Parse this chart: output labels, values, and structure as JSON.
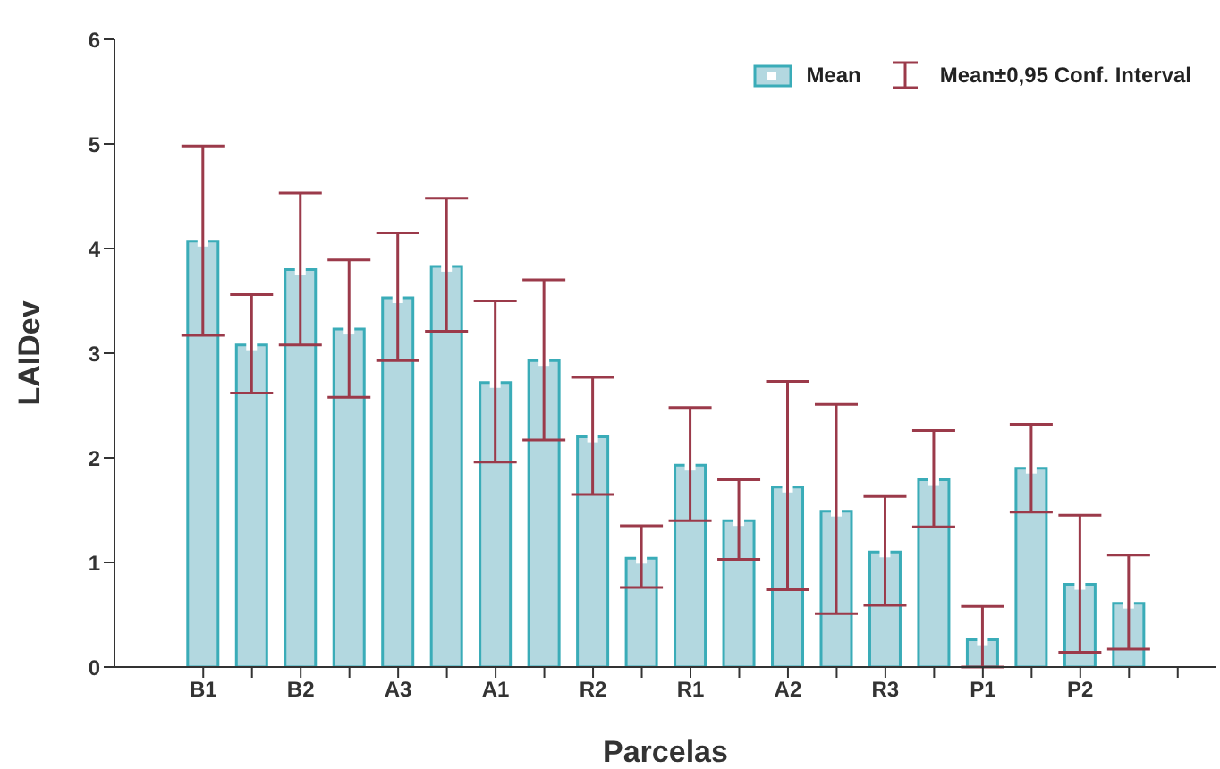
{
  "chart_data": {
    "type": "bar",
    "xlabel": "Parcelas",
    "ylabel": "LAIDev",
    "categories": [
      "B1",
      null,
      "B2",
      null,
      "A3",
      null,
      "A1",
      null,
      "R2",
      null,
      "R1",
      null,
      "A2",
      null,
      "R3",
      null,
      "P1",
      null,
      "P2",
      null,
      null
    ],
    "series": [
      {
        "name": "Mean",
        "color": "#b3d8e0",
        "values": [
          4.07,
          3.08,
          3.8,
          3.23,
          3.53,
          3.83,
          2.72,
          2.93,
          2.2,
          1.04,
          1.93,
          1.4,
          1.72,
          1.49,
          1.1,
          1.79,
          0.26,
          1.9,
          0.79,
          0.61,
          null
        ],
        "errors": [
          [
            3.17,
            4.98
          ],
          [
            2.62,
            3.56
          ],
          [
            3.08,
            4.53
          ],
          [
            2.58,
            3.89
          ],
          [
            2.93,
            4.15
          ],
          [
            3.21,
            4.48
          ],
          [
            1.96,
            3.5
          ],
          [
            2.17,
            3.7
          ],
          [
            1.65,
            2.77
          ],
          [
            0.76,
            1.35
          ],
          [
            1.4,
            2.48
          ],
          [
            1.03,
            1.79
          ],
          [
            0.74,
            2.73
          ],
          [
            0.51,
            2.51
          ],
          [
            0.59,
            1.63
          ],
          [
            1.34,
            2.26
          ],
          [
            0,
            0.58
          ],
          [
            1.48,
            2.32
          ],
          [
            0.14,
            1.45
          ],
          [
            0.17,
            1.07
          ],
          null
        ]
      }
    ],
    "annotations": [
      "Mean±0,95 Conf. Interval"
    ],
    "ylim": [
      0,
      6
    ],
    "yticks": [
      0,
      1,
      2,
      3,
      4,
      5,
      6
    ],
    "grid": false,
    "legend": "top right",
    "marker": "square"
  }
}
